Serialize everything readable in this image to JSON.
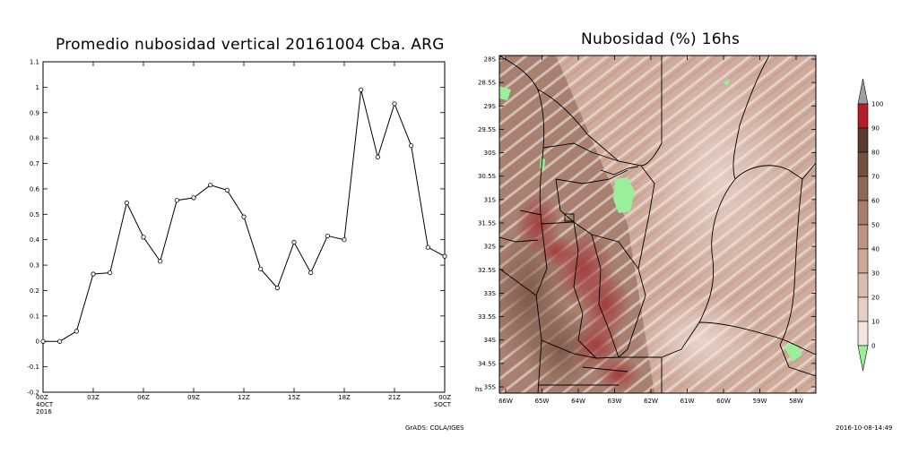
{
  "chart_data": [
    {
      "type": "line",
      "title": "Promedio nubosidad vertical 20161004 Cba. ARG",
      "xlabel": "",
      "ylabel": "",
      "x_ticks": [
        "00Z",
        "03Z",
        "06Z",
        "09Z",
        "12Z",
        "15Z",
        "18Z",
        "21Z",
        "00Z"
      ],
      "x_tick_sublabels": [
        [
          "4OCT",
          "2016"
        ],
        [],
        [],
        [],
        [],
        [],
        [],
        [],
        [
          "5OCT"
        ]
      ],
      "y_ticks": [
        "-0.2",
        "-0.1",
        "0",
        "0.1",
        "0.2",
        "0.3",
        "0.4",
        "0.5",
        "0.6",
        "0.7",
        "0.8",
        "0.9",
        "1",
        "1.1"
      ],
      "ylim": [
        -0.2,
        1.1
      ],
      "xlim_hours": [
        0,
        24
      ],
      "grid": false,
      "series": [
        {
          "x_hours": [
            0,
            1,
            2,
            3,
            4,
            5,
            6,
            7,
            8,
            9,
            10,
            11,
            12,
            13,
            14,
            15,
            16,
            17,
            18,
            19,
            20,
            21,
            22,
            23,
            24
          ],
          "values": [
            0.0,
            0.0,
            0.04,
            0.265,
            0.27,
            0.545,
            0.41,
            0.315,
            0.555,
            0.565,
            0.615,
            0.595,
            0.49,
            0.285,
            0.21,
            0.39,
            0.27,
            0.415,
            0.4,
            0.99,
            0.725,
            0.935,
            0.77,
            0.37,
            0.335
          ]
        }
      ]
    },
    {
      "type": "heatmap",
      "title": "Nubosidad (%) 16hs",
      "y_ticks": [
        "28S",
        "28.5S",
        "29S",
        "29.5S",
        "30S",
        "30.5S",
        "31S",
        "31.5S",
        "32S",
        "32.5S",
        "33S",
        "33.5S",
        "34S",
        "34.5S",
        "35S"
      ],
      "y_corner_label": "hs",
      "x_ticks": [
        "66W",
        "65W",
        "64W",
        "63W",
        "62W",
        "61W",
        "60W",
        "59W",
        "58W"
      ],
      "colorbar": {
        "levels": [
          "0",
          "10",
          "20",
          "30",
          "40",
          "50",
          "60",
          "70",
          "80",
          "90",
          "100"
        ],
        "colors": [
          "#ffffff",
          "#f2e4df",
          "#e8cfc4",
          "#dcbcae",
          "#cfa896",
          "#bf9480",
          "#a97d69",
          "#8f6856",
          "#735140",
          "#5a3b2e",
          "#b41e28"
        ],
        "under_color": "#9af09a",
        "over_color": "#a0a0a0"
      }
    }
  ],
  "footer": {
    "credit": "GrADS: COLA/IGES",
    "timestamp": "2016-10-08-14:49"
  }
}
